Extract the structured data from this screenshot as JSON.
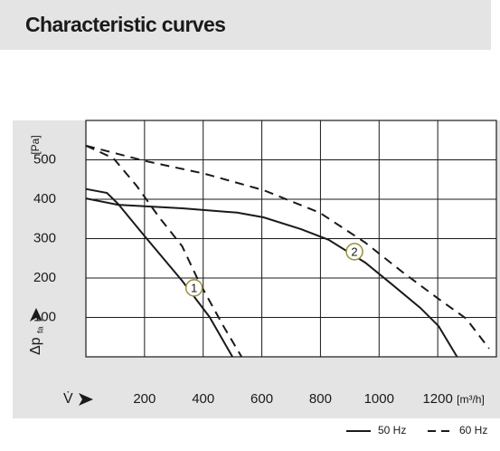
{
  "header": {
    "title": "Characteristic curves"
  },
  "chart_data": {
    "type": "line",
    "ylabel": "Δp",
    "ylabel_sub": "fa",
    "yunit": "[Pa]",
    "xlabel": "V̇",
    "xunit": "[m³/h]",
    "xlim": [
      0,
      1400
    ],
    "ylim": [
      0,
      600
    ],
    "xticks": [
      200,
      400,
      600,
      800,
      1000,
      1200
    ],
    "yticks": [
      100,
      200,
      300,
      400,
      500
    ],
    "grid": true,
    "color": "#1a1a1a",
    "legend": [
      {
        "label": "50 Hz",
        "dashed": false
      },
      {
        "label": "60 Hz",
        "dashed": true
      }
    ],
    "series": [
      {
        "dashed": false,
        "x": [
          0,
          72,
          109,
          203,
          328,
          422,
          500
        ],
        "values": [
          426,
          416,
          389,
          304,
          193,
          101,
          0
        ]
      },
      {
        "dashed": true,
        "x": [
          0,
          94,
          172,
          250,
          328,
          384,
          469,
          531
        ],
        "values": [
          536,
          504,
          435,
          354,
          281,
          193,
          78,
          0
        ]
      },
      {
        "dashed": false,
        "x": [
          0,
          109,
          328,
          516,
          606,
          734,
          828,
          953,
          1047,
          1141,
          1203,
          1266
        ],
        "values": [
          402,
          386,
          377,
          366,
          354,
          324,
          297,
          239,
          182,
          124,
          78,
          0
        ]
      },
      {
        "dashed": true,
        "x": [
          0,
          203,
          403,
          606,
          797,
          953,
          1078,
          1203,
          1297,
          1375
        ],
        "values": [
          536,
          497,
          465,
          423,
          366,
          290,
          216,
          147,
          97,
          21
        ]
      }
    ],
    "annotations": [
      {
        "text": "1",
        "x": 369,
        "y": 175
      },
      {
        "text": "2",
        "x": 916,
        "y": 267
      }
    ]
  }
}
